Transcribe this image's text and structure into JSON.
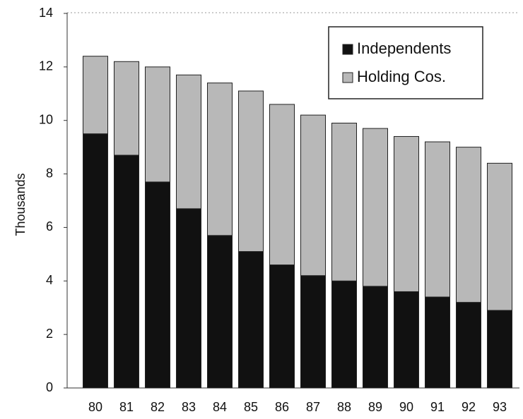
{
  "chart_data": {
    "type": "stacked-bar",
    "y_label": "Thousands",
    "categories": [
      "80",
      "81",
      "82",
      "83",
      "84",
      "85",
      "86",
      "87",
      "88",
      "89",
      "90",
      "91",
      "92",
      "93"
    ],
    "series": [
      {
        "name": "Independents",
        "color": "#111111",
        "values": [
          9.5,
          8.7,
          7.7,
          6.7,
          5.7,
          5.1,
          4.6,
          4.2,
          4.0,
          3.8,
          3.6,
          3.4,
          3.2,
          2.9
        ]
      },
      {
        "name": "Holding Cos.",
        "color": "#b8b8b8",
        "values": [
          2.9,
          3.5,
          4.3,
          5.0,
          5.7,
          6.0,
          6.0,
          6.0,
          5.9,
          5.9,
          5.8,
          5.8,
          5.8,
          5.5
        ]
      }
    ],
    "ylim": [
      0,
      14
    ],
    "yticks": [
      0,
      2,
      4,
      6,
      8,
      10,
      12,
      14
    ],
    "legend": "top-right"
  }
}
